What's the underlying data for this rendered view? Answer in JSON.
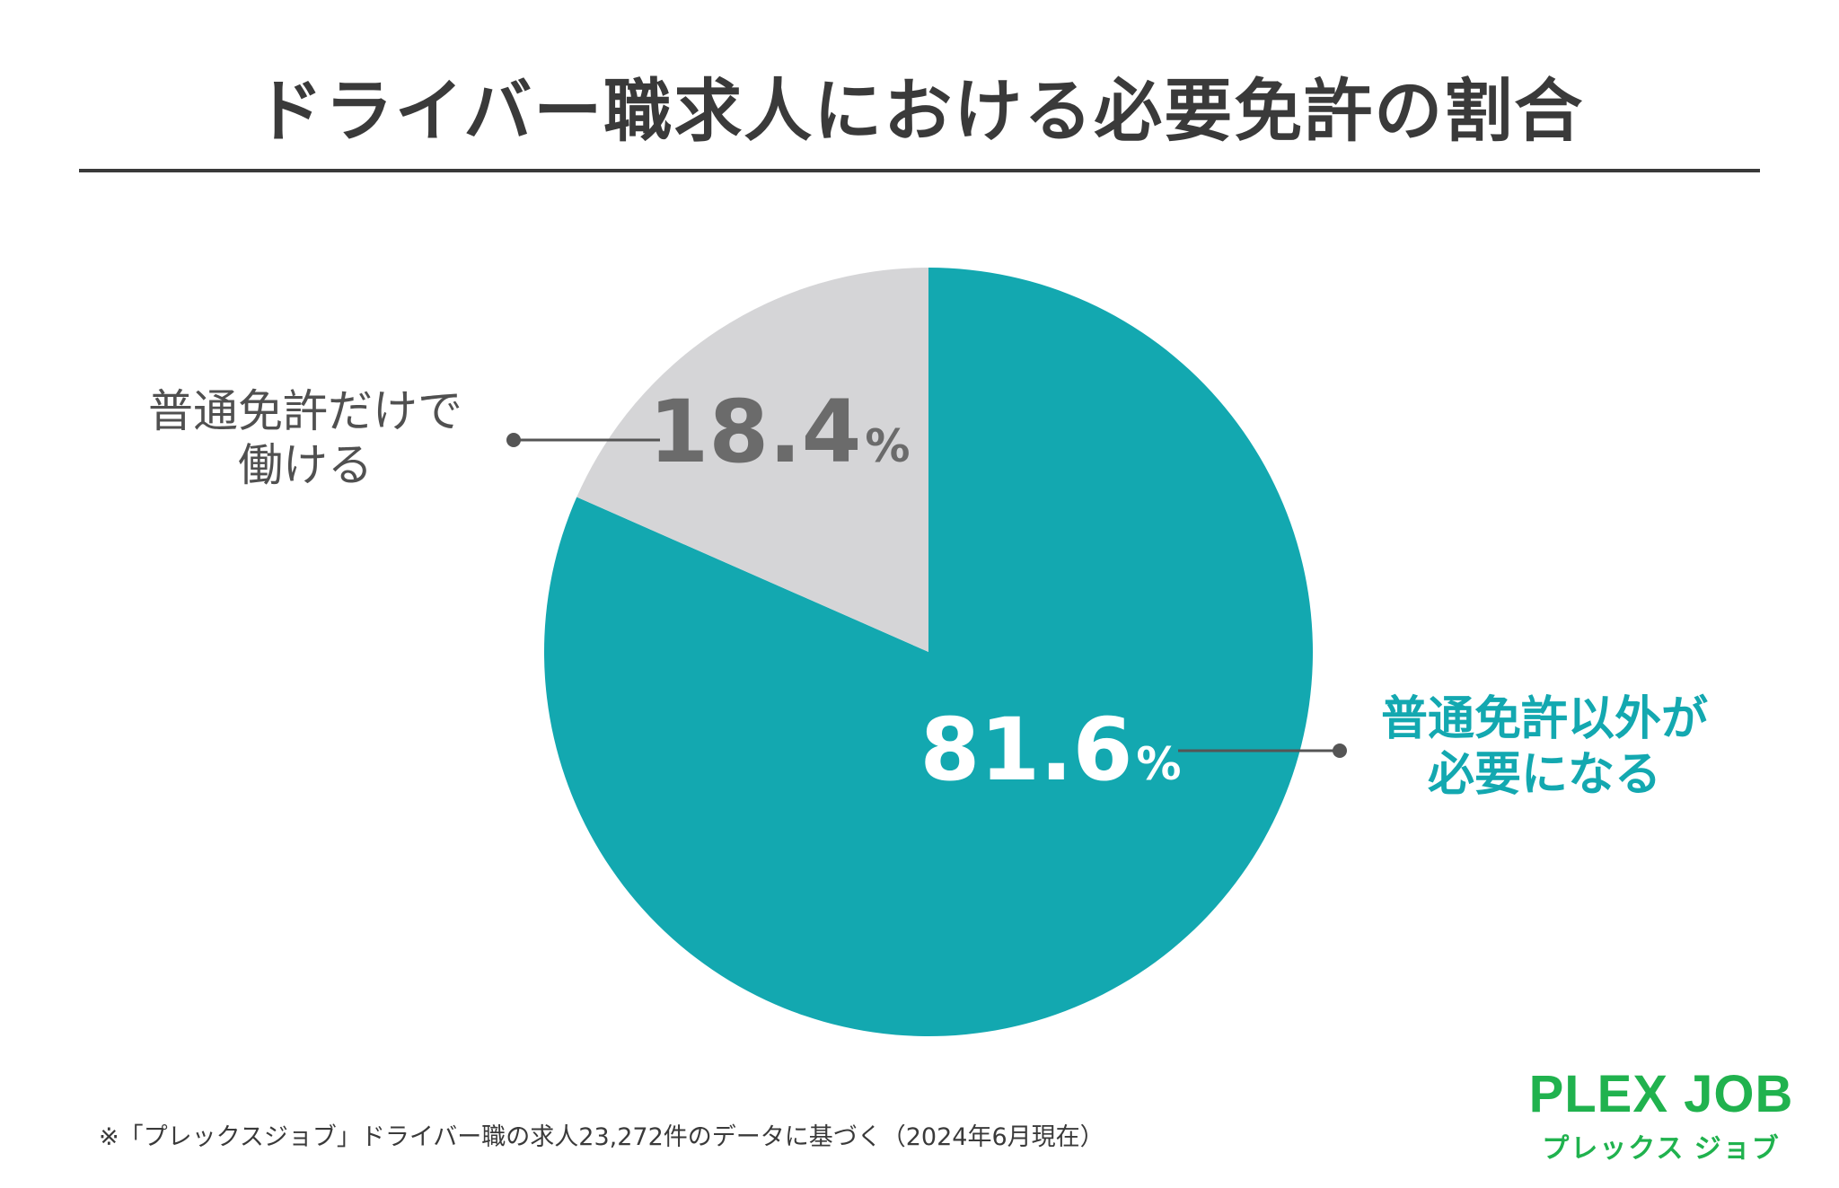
{
  "title": "ドライバー職求人における必要免許の割合",
  "colors": {
    "teal": "#13a8b0",
    "gray": "#d5d5d7",
    "gray_text": "#6b6b6b",
    "dark": "#3a3a3a",
    "logo_green": "#20b24e"
  },
  "chart_data": {
    "type": "pie",
    "slices": [
      {
        "label_lines": [
          "普通免許以外が",
          "必要になる"
        ],
        "value": 81.6,
        "display": "81.6",
        "unit": "%",
        "color": "#13a8b0"
      },
      {
        "label_lines": [
          "普通免許だけで",
          "働ける"
        ],
        "value": 18.4,
        "display": "18.4",
        "unit": "%",
        "color": "#d5d5d7"
      }
    ],
    "start": "12 o'clock",
    "direction": "clockwise"
  },
  "footnote": "※「プレックスジョブ」ドライバー職の求人23,272件のデータに基づく（2024年6月現在）",
  "logo": {
    "main": "PLEX JOB",
    "sub": "プレックス ジョブ"
  }
}
